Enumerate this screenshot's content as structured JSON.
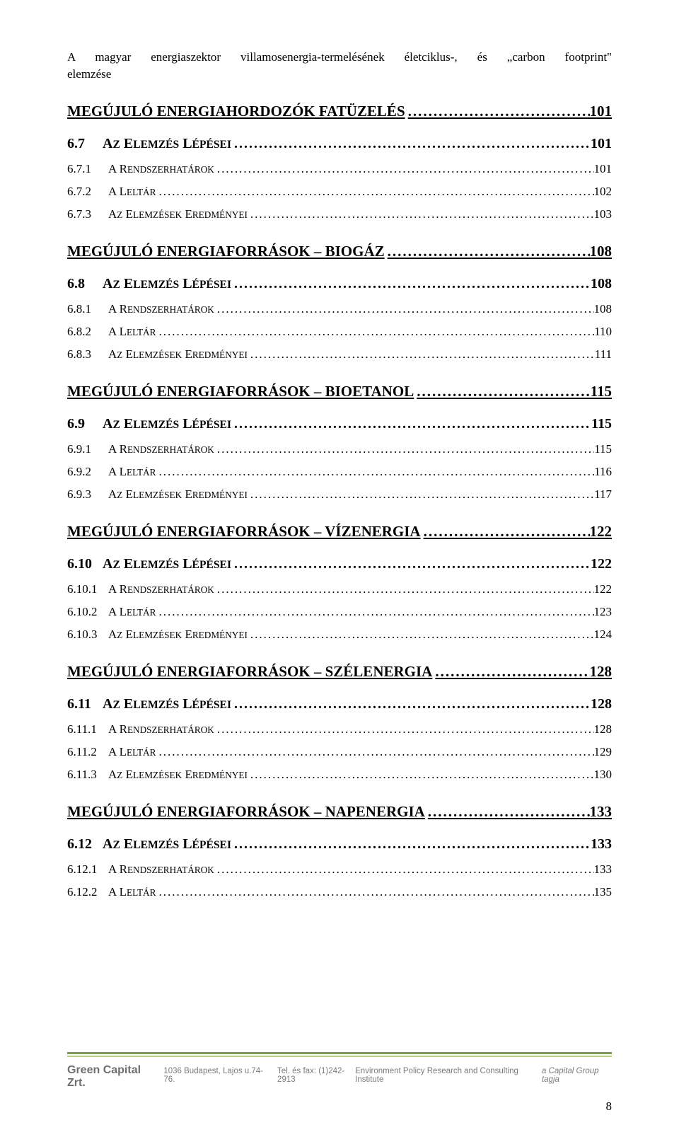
{
  "header": {
    "line1": "A magyar energiaszektor villamosenergia-termelésének életciklus-, és „carbon footprint\"",
    "line2": "elemzése"
  },
  "toc": [
    {
      "level": 1,
      "label": "MEGÚJULÓ ENERGIAHORDOZÓK FATÜZELÉS",
      "page": "101"
    },
    {
      "level": 2,
      "num": "6.7",
      "label_sc": "Az elemzés lépései",
      "page": "101"
    },
    {
      "level": 3,
      "num": "6.7.1",
      "label_sc": "A rendszerhatárok",
      "page": "101"
    },
    {
      "level": 3,
      "num": "6.7.2",
      "label_sc": "A leltár",
      "page": "102"
    },
    {
      "level": 3,
      "num": "6.7.3",
      "label_sc": "Az elemzések eredményei",
      "page": "103"
    },
    {
      "level": 1,
      "label": "MEGÚJULÓ ENERGIAFORRÁSOK – BIOGÁZ",
      "page": "108"
    },
    {
      "level": 2,
      "num": "6.8",
      "label_sc": "Az elemzés lépései",
      "page": "108"
    },
    {
      "level": 3,
      "num": "6.8.1",
      "label_sc": "A rendszerhatárok",
      "page": "108"
    },
    {
      "level": 3,
      "num": "6.8.2",
      "label_sc": "A leltár",
      "page": "110"
    },
    {
      "level": 3,
      "num": "6.8.3",
      "label_sc": "Az elemzések eredményei",
      "page": "111"
    },
    {
      "level": 1,
      "label": "MEGÚJULÓ ENERGIAFORRÁSOK – BIOETANOL",
      "page": "115"
    },
    {
      "level": 2,
      "num": "6.9",
      "label_sc": "Az elemzés lépései",
      "page": "115"
    },
    {
      "level": 3,
      "num": "6.9.1",
      "label_sc": "A rendszerhatárok",
      "page": "115"
    },
    {
      "level": 3,
      "num": "6.9.2",
      "label_sc": "A leltár",
      "page": "116"
    },
    {
      "level": 3,
      "num": "6.9.3",
      "label_sc": "Az elemzések eredményei",
      "page": "117"
    },
    {
      "level": 1,
      "label": "MEGÚJULÓ ENERGIAFORRÁSOK – VÍZENERGIA",
      "page": "122"
    },
    {
      "level": 2,
      "num": "6.10",
      "label_sc": "Az elemzés lépései",
      "page": "122"
    },
    {
      "level": 3,
      "num": "6.10.1",
      "label_sc": "A rendszerhatárok",
      "page": "122"
    },
    {
      "level": 3,
      "num": "6.10.2",
      "label_sc": "A leltár",
      "page": "123"
    },
    {
      "level": 3,
      "num": "6.10.3",
      "label_sc": "Az elemzések eredményei",
      "page": "124"
    },
    {
      "level": 1,
      "label": "MEGÚJULÓ ENERGIAFORRÁSOK – SZÉLENERGIA",
      "page": "128"
    },
    {
      "level": 2,
      "num": "6.11",
      "label_sc": "Az elemzés lépései",
      "page": "128"
    },
    {
      "level": 3,
      "num": "6.11.1",
      "label_sc": "A rendszerhatárok",
      "page": "128"
    },
    {
      "level": 3,
      "num": "6.11.2",
      "label_sc": "A leltár",
      "page": "129"
    },
    {
      "level": 3,
      "num": "6.11.3",
      "label_sc": "Az elemzések eredményei",
      "page": "130"
    },
    {
      "level": 1,
      "label": "MEGÚJULÓ ENERGIAFORRÁSOK – NAPENERGIA",
      "page": "133"
    },
    {
      "level": 2,
      "num": "6.12",
      "label_sc": "Az elemzés lépései",
      "page": "133"
    },
    {
      "level": 3,
      "num": "6.12.1",
      "label_sc": "A rendszerhatárok",
      "page": "133"
    },
    {
      "level": 3,
      "num": "6.12.2",
      "label_sc": "A leltár",
      "page": "135"
    }
  ],
  "footer": {
    "brand": "Green Capital Zrt.",
    "address": "1036 Budapest, Lajos u.74-76.",
    "tel": "Tel. és fax: (1)242-2913",
    "institute": "Environment Policy Research and Consulting Institute",
    "member": "a Capital Group tagja",
    "pagenum": "8",
    "rule_top_color": "#7aa23a",
    "rule_bot_color": "#b9cf8d"
  }
}
